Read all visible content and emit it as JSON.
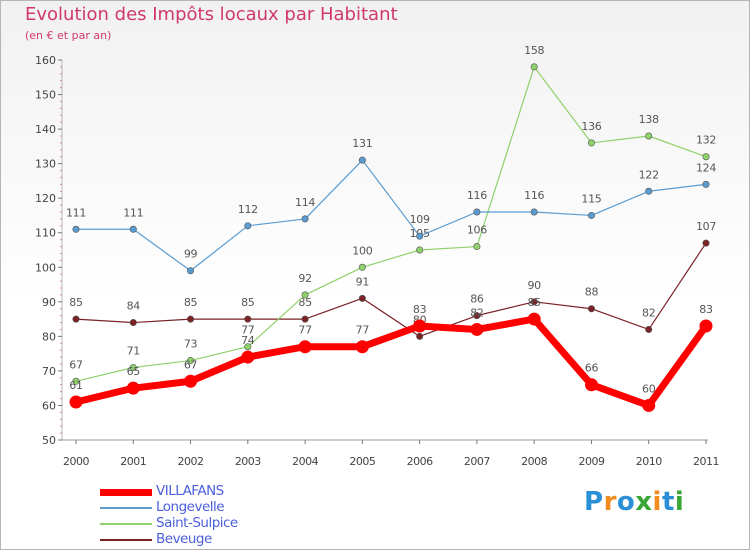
{
  "chart_data": {
    "type": "line",
    "title": "Evolution des Impôts locaux par Habitant",
    "subtitle": "(en € et par an)",
    "xlabel": "",
    "ylabel": "",
    "x": [
      "2000",
      "2001",
      "2002",
      "2003",
      "2004",
      "2005",
      "2006",
      "2007",
      "2008",
      "2009",
      "2010",
      "2011"
    ],
    "ylim": [
      50,
      160
    ],
    "yticks": [
      50,
      60,
      70,
      80,
      90,
      100,
      110,
      120,
      130,
      140,
      150,
      160
    ],
    "grid": false,
    "legend_position": "bottom-left",
    "series": [
      {
        "name": "Beveuge",
        "color": "#7b2226",
        "values": [
          85,
          84,
          85,
          85,
          85,
          91,
          80,
          86,
          90,
          88,
          82,
          107
        ],
        "labels": [
          "85",
          "84",
          "85",
          "85",
          "85",
          "91",
          "80",
          "86",
          "90",
          "88",
          "82",
          "107"
        ]
      },
      {
        "name": "Saint-Sulpice",
        "color": "#8fd16a",
        "values": [
          67,
          71,
          73,
          77,
          92,
          100,
          105,
          106,
          158,
          136,
          138,
          132
        ],
        "labels": [
          "67",
          "71",
          "73",
          "77",
          "92",
          "100",
          "105",
          "106",
          "158",
          "136",
          "138",
          "132"
        ]
      },
      {
        "name": "Longevelle",
        "color": "#5a9bd0",
        "values": [
          111,
          111,
          99,
          112,
          114,
          131,
          109,
          116,
          116,
          115,
          122,
          124
        ],
        "labels": [
          "111",
          "111",
          "99",
          "112",
          "114",
          "131",
          "109",
          "116",
          "116",
          "115",
          "122",
          "124"
        ]
      },
      {
        "name": "VILLAFANS",
        "color": "#ff0000",
        "values": [
          61,
          65,
          67,
          74,
          77,
          77,
          83,
          82,
          85,
          66,
          60,
          83
        ],
        "labels": [
          "61",
          "65",
          "67",
          "74",
          "77",
          "77",
          "83",
          "82",
          "85",
          "66",
          "60",
          "83"
        ]
      }
    ],
    "legend_order": [
      "VILLAFANS",
      "Longevelle",
      "Saint-Sulpice",
      "Beveuge"
    ]
  },
  "brand": {
    "letters": [
      "P",
      "r",
      "o",
      "x",
      "i",
      "t",
      "i"
    ],
    "colors": [
      "#2b8fd6",
      "#f28c1e",
      "#2b8fd6",
      "#3aa635",
      "#f28c1e",
      "#2b8fd6",
      "#3aa635"
    ]
  }
}
